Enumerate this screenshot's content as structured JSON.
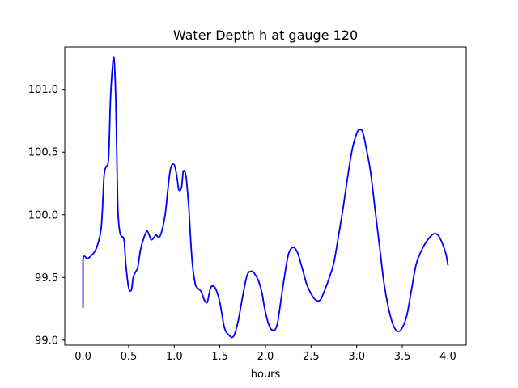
{
  "chart_data": {
    "type": "line",
    "title": "Water Depth h at gauge 120",
    "xlabel": "hours",
    "ylabel": "",
    "xlim": [
      -0.2,
      4.2
    ],
    "ylim": [
      98.96,
      101.34
    ],
    "xticks": [
      0.0,
      0.5,
      1.0,
      1.5,
      2.0,
      2.5,
      3.0,
      3.5,
      4.0
    ],
    "xtick_labels": [
      "0.0",
      "0.5",
      "1.0",
      "1.5",
      "2.0",
      "2.5",
      "3.0",
      "3.5",
      "4.0"
    ],
    "yticks": [
      99.0,
      99.5,
      100.0,
      100.5,
      101.0
    ],
    "ytick_labels": [
      "99.0",
      "99.5",
      "100.0",
      "100.5",
      "101.0"
    ],
    "grid": false,
    "series": [
      {
        "color": "#0000ff",
        "x": [
          0.0,
          0.0,
          0.05,
          0.1,
          0.15,
          0.2,
          0.23,
          0.25,
          0.28,
          0.3,
          0.32,
          0.34,
          0.36,
          0.38,
          0.4,
          0.42,
          0.45,
          0.47,
          0.5,
          0.53,
          0.55,
          0.58,
          0.6,
          0.63,
          0.66,
          0.7,
          0.73,
          0.75,
          0.78,
          0.8,
          0.83,
          0.86,
          0.9,
          0.93,
          0.96,
          1.0,
          1.03,
          1.05,
          1.08,
          1.1,
          1.13,
          1.16,
          1.18,
          1.2,
          1.23,
          1.25,
          1.28,
          1.3,
          1.33,
          1.36,
          1.38,
          1.4,
          1.43,
          1.46,
          1.5,
          1.55,
          1.6,
          1.65,
          1.7,
          1.75,
          1.8,
          1.85,
          1.88,
          1.92,
          1.96,
          2.0,
          2.05,
          2.1,
          2.13,
          2.15,
          2.2,
          2.25,
          2.3,
          2.35,
          2.4,
          2.45,
          2.5,
          2.55,
          2.6,
          2.65,
          2.7,
          2.75,
          2.8,
          2.85,
          2.9,
          2.95,
          3.0,
          3.03,
          3.06,
          3.08,
          3.1,
          3.15,
          3.2,
          3.25,
          3.3,
          3.35,
          3.4,
          3.45,
          3.5,
          3.55,
          3.6,
          3.65,
          3.7,
          3.75,
          3.8,
          3.85,
          3.9,
          3.95,
          3.98,
          4.0
        ],
        "y": [
          99.26,
          99.64,
          99.65,
          99.68,
          99.74,
          99.9,
          100.3,
          100.38,
          100.45,
          100.9,
          101.15,
          101.25,
          100.9,
          100.1,
          99.88,
          99.83,
          99.8,
          99.6,
          99.42,
          99.4,
          99.5,
          99.55,
          99.58,
          99.72,
          99.8,
          99.87,
          99.83,
          99.8,
          99.82,
          99.84,
          99.82,
          99.86,
          100.0,
          100.2,
          100.37,
          100.4,
          100.3,
          100.2,
          100.22,
          100.35,
          100.3,
          100.05,
          99.8,
          99.6,
          99.45,
          99.42,
          99.4,
          99.38,
          99.32,
          99.3,
          99.36,
          99.42,
          99.43,
          99.4,
          99.3,
          99.1,
          99.04,
          99.03,
          99.15,
          99.35,
          99.52,
          99.55,
          99.53,
          99.48,
          99.38,
          99.22,
          99.1,
          99.08,
          99.13,
          99.22,
          99.47,
          99.68,
          99.74,
          99.7,
          99.58,
          99.45,
          99.37,
          99.32,
          99.32,
          99.4,
          99.5,
          99.62,
          99.83,
          100.05,
          100.3,
          100.52,
          100.65,
          100.68,
          100.67,
          100.62,
          100.55,
          100.35,
          100.05,
          99.75,
          99.45,
          99.25,
          99.12,
          99.07,
          99.1,
          99.2,
          99.4,
          99.6,
          99.7,
          99.77,
          99.82,
          99.85,
          99.83,
          99.75,
          99.68,
          99.6
        ]
      }
    ]
  }
}
